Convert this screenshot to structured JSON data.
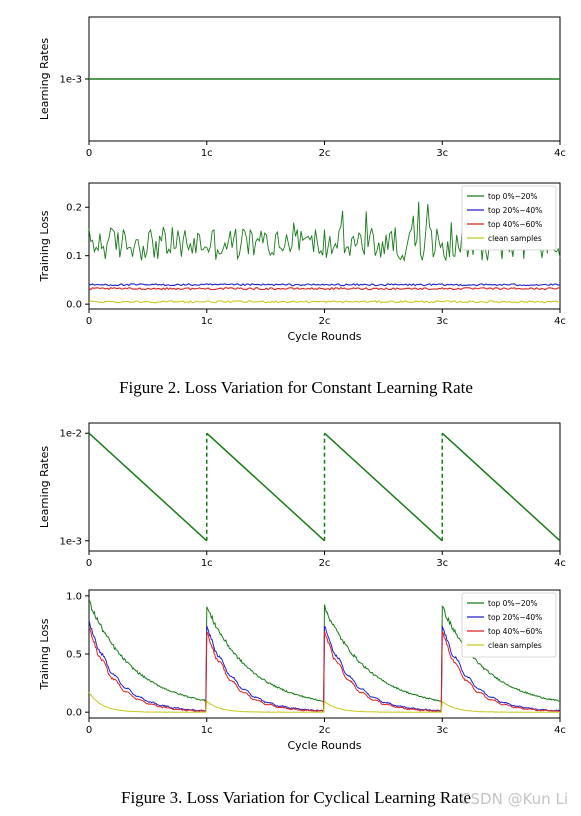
{
  "figures": [
    {
      "caption": "Figure 2. Loss Variation for Constant Learning Rate"
    },
    {
      "caption": "Figure 3. Loss Variation for Cyclical Learning Rate"
    }
  ],
  "watermark": "CSDN @Kun Li",
  "chart_data": [
    {
      "id": "fig2-lr",
      "type": "line",
      "title": "",
      "xlabel": "",
      "ylabel": "Learning Rates",
      "x_ticks": [
        "0",
        "1c",
        "2c",
        "3c",
        "4c"
      ],
      "y_ticks": [
        "1e-3"
      ],
      "xlim": [
        0,
        4
      ],
      "grid": false,
      "series": [
        {
          "color": "#1a7a1a",
          "style": "solid",
          "x": [
            0,
            4
          ],
          "y": [
            0.001,
            0.001
          ]
        }
      ]
    },
    {
      "id": "fig2-loss",
      "type": "line",
      "title": "",
      "xlabel": "Cycle Rounds",
      "ylabel": "Training Loss",
      "x_ticks": [
        "0",
        "1c",
        "2c",
        "3c",
        "4c"
      ],
      "y_ticks": [
        "0.0",
        "0.1",
        "0.2"
      ],
      "xlim": [
        0,
        4
      ],
      "ylim": [
        -0.01,
        0.25
      ],
      "grid": false,
      "legend_position": "top-right",
      "series": [
        {
          "name": "top 0%~20%",
          "color": "#1a7a1a",
          "pattern": "noisy",
          "mean": 0.125,
          "min": 0.08,
          "max": 0.23
        },
        {
          "name": "top 20%~40%",
          "color": "#2222cc",
          "pattern": "flat",
          "mean": 0.04
        },
        {
          "name": "top 40%~60%",
          "color": "#dd2222",
          "pattern": "flat",
          "mean": 0.032
        },
        {
          "name": "clean samples",
          "color": "#c8c820",
          "pattern": "flat",
          "mean": 0.005
        }
      ]
    },
    {
      "id": "fig3-lr",
      "type": "line",
      "title": "",
      "xlabel": "",
      "ylabel": "Learning Rates",
      "x_ticks": [
        "0",
        "1c",
        "2c",
        "3c",
        "4c"
      ],
      "y_ticks": [
        "1e-2",
        "1e-3"
      ],
      "xlim": [
        0,
        4
      ],
      "yscale": "log",
      "grid": false,
      "series": [
        {
          "color": "#1a7a1a",
          "pattern": "sawtooth",
          "start": 0.01,
          "end": 0.001,
          "cycles": 4,
          "restart_style": "dashed"
        }
      ]
    },
    {
      "id": "fig3-loss",
      "type": "line",
      "title": "",
      "xlabel": "Cycle Rounds",
      "ylabel": "Training Loss",
      "x_ticks": [
        "0",
        "1c",
        "2c",
        "3c",
        "4c"
      ],
      "y_ticks": [
        "0.0",
        "0.5",
        "1.0"
      ],
      "xlim": [
        0,
        4
      ],
      "ylim": [
        -0.05,
        1.05
      ],
      "grid": false,
      "legend_position": "top-right",
      "series": [
        {
          "name": "top 0%~20%",
          "color": "#1a7a1a",
          "pattern": "cycle-decay",
          "peak": 0.95,
          "floor": 0.03
        },
        {
          "name": "top 20%~40%",
          "color": "#2222cc",
          "pattern": "cycle-decay",
          "peak": 0.78,
          "floor": 0.0
        },
        {
          "name": "top 40%~60%",
          "color": "#dd2222",
          "pattern": "cycle-decay",
          "peak": 0.73,
          "floor": 0.0
        },
        {
          "name": "clean samples",
          "color": "#c8c820",
          "pattern": "cycle-decay",
          "peak": 0.17,
          "floor": 0.0
        }
      ]
    }
  ]
}
